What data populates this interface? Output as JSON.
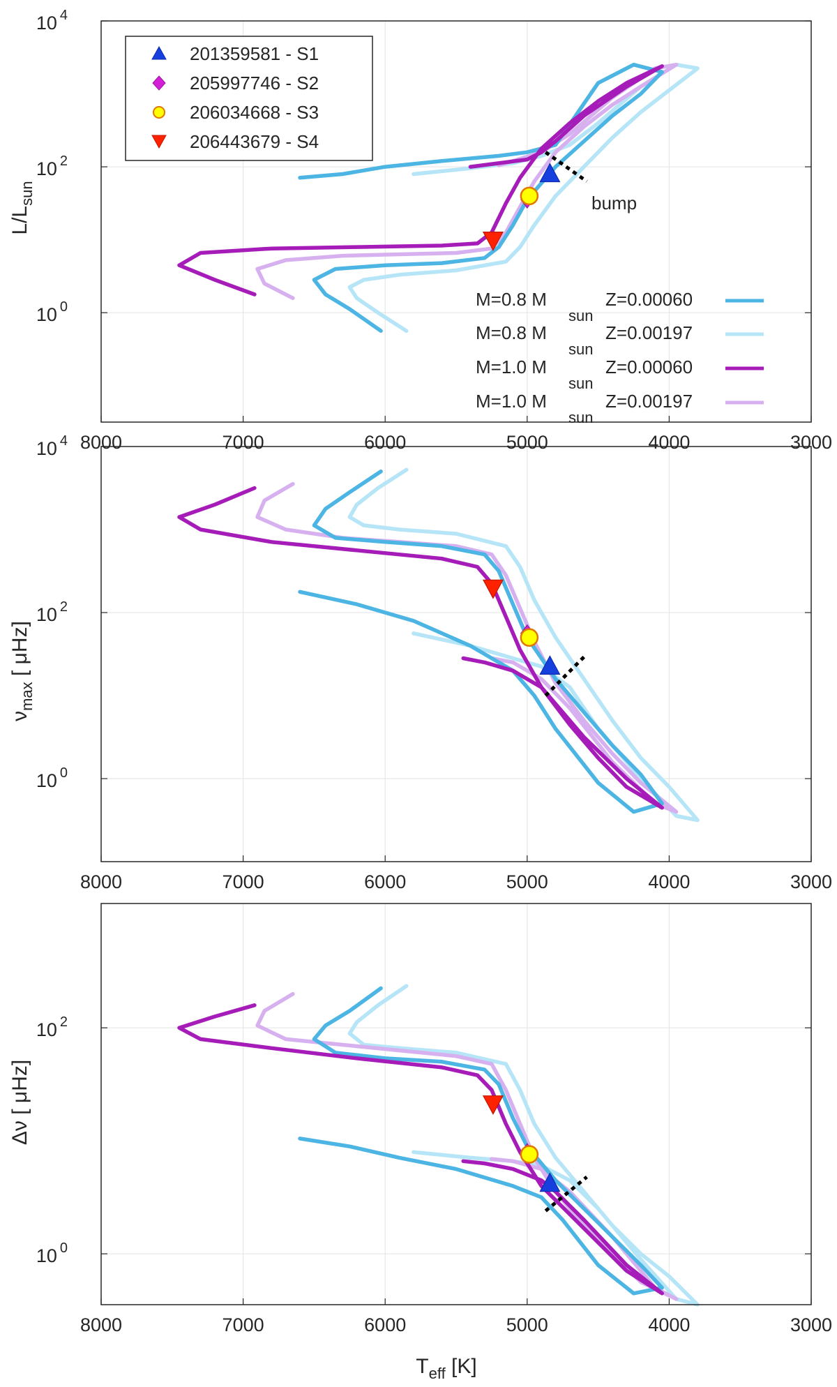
{
  "figure": {
    "x_axis": {
      "label_main": "T",
      "label_sub": "eff",
      "label_unit": " [K]",
      "reversed": true,
      "xlim": [
        3000,
        8000
      ],
      "ticks": [
        "8000",
        "7000",
        "6000",
        "5000",
        "4000",
        "3000"
      ],
      "tick_values": [
        8000,
        7000,
        6000,
        5000,
        4000,
        3000
      ]
    },
    "colors": {
      "M0.8_Z0.00060": "#4cb5e3",
      "M0.8_Z0.00197": "#b5e5f7",
      "M1.0_Z0.00060": "#a61cb8",
      "M1.0_Z0.00197": "#d7b1ef",
      "S1": "#1640dd",
      "S2": "#d31fd6",
      "S3": "#ffff00",
      "S4": "#ff2200"
    },
    "legend": {
      "stars": [
        {
          "key": "S1",
          "label": "201359581 - S1",
          "symbol": "triangle-up"
        },
        {
          "key": "S2",
          "label": "205997746 - S2",
          "symbol": "diamond"
        },
        {
          "key": "S3",
          "label": "206034668 - S3",
          "symbol": "circle"
        },
        {
          "key": "S4",
          "label": "206443679 - S4",
          "symbol": "triangle-down"
        }
      ],
      "tracks": [
        {
          "key": "M0.8_Z0.00060",
          "m": "M=0.8 M",
          "sun": "sun",
          "z": "Z=0.00060"
        },
        {
          "key": "M0.8_Z0.00197",
          "m": "M=0.8 M",
          "sun": "sun",
          "z": "Z=0.00197"
        },
        {
          "key": "M1.0_Z0.00060",
          "m": "M=1.0 M",
          "sun": "sun",
          "z": "Z=0.00060"
        },
        {
          "key": "M1.0_Z0.00197",
          "m": "M=1.0 M",
          "sun": "sun",
          "z": "Z=0.00197"
        }
      ]
    },
    "bump_label": "bump"
  },
  "chart_data": [
    {
      "type": "line",
      "panel": "luminosity",
      "ylabel_main": "L/L",
      "ylabel_sub": "sun",
      "yscale": "log",
      "ylim_log": [
        -1.5,
        4
      ],
      "yticks": [
        {
          "base": "10",
          "exp": "0",
          "log": 0
        },
        {
          "base": "10",
          "exp": "2",
          "log": 2
        },
        {
          "base": "10",
          "exp": "4",
          "log": 4
        }
      ],
      "series": [
        {
          "name": "M=0.8 Msun Z=0.00060",
          "key": "M0.8_Z0.00060",
          "x": [
            6030,
            6250,
            6420,
            6500,
            6350,
            6000,
            5600,
            5300,
            5200,
            5100,
            5000,
            4800,
            4600,
            4400,
            4200,
            4050,
            4250,
            4500,
            4800,
            5000,
            5200,
            5600,
            6000,
            6300,
            6600
          ],
          "y": [
            -0.25,
            0.05,
            0.25,
            0.45,
            0.6,
            0.65,
            0.68,
            0.75,
            0.9,
            1.2,
            1.55,
            2.0,
            2.35,
            2.7,
            3.0,
            3.3,
            3.4,
            3.15,
            2.3,
            2.2,
            2.15,
            2.08,
            2.0,
            1.9,
            1.85
          ]
        },
        {
          "name": "M=0.8 Msun Z=0.00197",
          "key": "M0.8_Z0.00197",
          "x": [
            5850,
            6050,
            6200,
            6250,
            6150,
            5900,
            5500,
            5150,
            5050,
            4950,
            4800,
            4600,
            4400,
            4200,
            4000,
            3800,
            3950,
            4200,
            4500,
            4700,
            4900,
            5100,
            5400,
            5800
          ],
          "y": [
            -0.25,
            0.0,
            0.2,
            0.35,
            0.45,
            0.52,
            0.58,
            0.7,
            0.9,
            1.2,
            1.6,
            2.0,
            2.4,
            2.75,
            3.05,
            3.35,
            3.4,
            3.1,
            2.6,
            2.3,
            2.15,
            2.05,
            1.98,
            1.9
          ]
        },
        {
          "name": "M=1.0 Msun Z=0.00060",
          "key": "M1.0_Z0.00060",
          "x": [
            6920,
            7200,
            7450,
            7300,
            6800,
            6200,
            5600,
            5350,
            5250,
            5150,
            5050,
            4900,
            4700,
            4500,
            4300,
            4050,
            4300,
            4600,
            4800,
            4900,
            5000,
            5200,
            5400
          ],
          "y": [
            0.25,
            0.45,
            0.65,
            0.82,
            0.88,
            0.9,
            0.92,
            0.95,
            1.1,
            1.5,
            1.85,
            2.25,
            2.6,
            2.9,
            3.15,
            3.38,
            3.1,
            2.7,
            2.35,
            2.2,
            2.1,
            2.05,
            2.0
          ]
        },
        {
          "name": "M=1.0 Msun Z=0.00197",
          "key": "M1.0_Z0.00197",
          "x": [
            6650,
            6850,
            6900,
            6700,
            6300,
            5900,
            5500,
            5250,
            5150,
            5050,
            4950,
            4800,
            4600,
            4400,
            4200,
            3950,
            4100,
            4400,
            4700,
            4900,
            5100,
            5200
          ],
          "y": [
            0.2,
            0.4,
            0.6,
            0.72,
            0.78,
            0.8,
            0.82,
            0.88,
            1.1,
            1.45,
            1.8,
            2.2,
            2.55,
            2.85,
            3.1,
            3.4,
            3.35,
            2.95,
            2.45,
            2.2,
            2.08,
            2.02
          ]
        }
      ],
      "stars": [
        {
          "key": "S1",
          "teff": 4840,
          "y": 1.9
        },
        {
          "key": "S2",
          "teff": 5000,
          "y": 1.55
        },
        {
          "key": "S3",
          "teff": 4985,
          "y": 1.6
        },
        {
          "key": "S4",
          "teff": 5240,
          "y": 1.0
        }
      ],
      "bump_line": {
        "x": [
          4870,
          4580
        ],
        "y": [
          2.2,
          1.8
        ]
      }
    },
    {
      "type": "line",
      "panel": "numax",
      "ylabel_main": "ν",
      "ylabel_sub": "max",
      "ylabel_unit": " [ μHz]",
      "yscale": "log",
      "ylim_log": [
        -1,
        4
      ],
      "yticks": [
        {
          "base": "10",
          "exp": "0",
          "log": 0
        },
        {
          "base": "10",
          "exp": "2",
          "log": 2
        },
        {
          "base": "10",
          "exp": "4",
          "log": 4
        }
      ],
      "series": [
        {
          "name": "M=0.8 Msun Z=0.00060",
          "key": "M0.8_Z0.00060",
          "x": [
            6030,
            6250,
            6420,
            6500,
            6350,
            6000,
            5600,
            5300,
            5200,
            5100,
            5000,
            4800,
            4600,
            4400,
            4200,
            4050,
            4250,
            4500,
            4800,
            4950,
            5100,
            5400,
            5800,
            6200,
            6600
          ],
          "y": [
            3.7,
            3.45,
            3.25,
            3.05,
            2.9,
            2.85,
            2.8,
            2.7,
            2.5,
            2.1,
            1.7,
            1.2,
            0.8,
            0.4,
            0.05,
            -0.3,
            -0.4,
            -0.05,
            0.6,
            1.0,
            1.3,
            1.6,
            1.9,
            2.1,
            2.25
          ]
        },
        {
          "name": "M=0.8 Msun Z=0.00197",
          "key": "M0.8_Z0.00197",
          "x": [
            5850,
            6050,
            6200,
            6250,
            6150,
            5900,
            5500,
            5150,
            5050,
            4950,
            4800,
            4600,
            4400,
            4200,
            4000,
            3800,
            3950,
            4200,
            4500,
            4700,
            4900,
            5100,
            5400,
            5800
          ],
          "y": [
            3.72,
            3.5,
            3.3,
            3.15,
            3.05,
            3.0,
            2.95,
            2.8,
            2.55,
            2.15,
            1.7,
            1.2,
            0.7,
            0.25,
            -0.1,
            -0.5,
            -0.45,
            0.0,
            0.6,
            1.1,
            1.35,
            1.45,
            1.6,
            1.75
          ]
        },
        {
          "name": "M=1.0 Msun Z=0.00060",
          "key": "M1.0_Z0.00060",
          "x": [
            6920,
            7200,
            7450,
            7300,
            6800,
            6200,
            5600,
            5350,
            5250,
            5150,
            5050,
            4900,
            4700,
            4500,
            4300,
            4050,
            4300,
            4600,
            4800,
            4900,
            5100,
            5300,
            5450
          ],
          "y": [
            3.5,
            3.3,
            3.15,
            3.0,
            2.85,
            2.75,
            2.65,
            2.55,
            2.35,
            1.95,
            1.55,
            1.1,
            0.65,
            0.25,
            -0.1,
            -0.35,
            0.0,
            0.5,
            0.9,
            1.1,
            1.3,
            1.4,
            1.45
          ]
        },
        {
          "name": "M=1.0 Msun Z=0.00197",
          "key": "M1.0_Z0.00197",
          "x": [
            6650,
            6850,
            6900,
            6700,
            6300,
            5900,
            5500,
            5250,
            5150,
            5050,
            4950,
            4800,
            4600,
            4400,
            4200,
            3950,
            4100,
            4400,
            4700,
            4900,
            5100,
            5250
          ],
          "y": [
            3.55,
            3.35,
            3.15,
            3.0,
            2.9,
            2.85,
            2.8,
            2.7,
            2.45,
            2.05,
            1.65,
            1.15,
            0.7,
            0.3,
            -0.05,
            -0.4,
            -0.3,
            0.2,
            0.85,
            1.2,
            1.4,
            1.45
          ]
        }
      ],
      "stars": [
        {
          "key": "S1",
          "teff": 4840,
          "y": 1.35
        },
        {
          "key": "S2",
          "teff": 5000,
          "y": 1.75
        },
        {
          "key": "S3",
          "teff": 4985,
          "y": 1.7
        },
        {
          "key": "S4",
          "teff": 5240,
          "y": 2.3
        }
      ],
      "bump_line": {
        "x": [
          4870,
          4580
        ],
        "y": [
          1.0,
          1.5
        ]
      }
    },
    {
      "type": "line",
      "panel": "delta_nu",
      "ylabel_main": "Δν",
      "ylabel_unit": " [ μHz]",
      "yscale": "log",
      "ylim_log": [
        -0.45,
        3.1
      ],
      "yticks": [
        {
          "base": "10",
          "exp": "0",
          "log": 0
        },
        {
          "base": "10",
          "exp": "2",
          "log": 2
        }
      ],
      "series": [
        {
          "name": "M=0.8 Msun Z=0.00060",
          "key": "M0.8_Z0.00060",
          "x": [
            6030,
            6250,
            6420,
            6500,
            6350,
            6000,
            5600,
            5300,
            5200,
            5100,
            5000,
            4800,
            4600,
            4400,
            4200,
            4050,
            4250,
            4500,
            4750,
            4900,
            5100,
            5500,
            5900,
            6250,
            6600
          ],
          "y": [
            2.35,
            2.15,
            2.02,
            1.9,
            1.78,
            1.73,
            1.7,
            1.63,
            1.5,
            1.2,
            0.95,
            0.65,
            0.4,
            0.15,
            -0.1,
            -0.3,
            -0.35,
            -0.1,
            0.3,
            0.5,
            0.6,
            0.75,
            0.85,
            0.95,
            1.02
          ]
        },
        {
          "name": "M=0.8 Msun Z=0.00197",
          "key": "M0.8_Z0.00197",
          "x": [
            5850,
            6050,
            6200,
            6250,
            6150,
            5900,
            5500,
            5150,
            5050,
            4950,
            4800,
            4600,
            4400,
            4200,
            4000,
            3800,
            3950,
            4200,
            4500,
            4700,
            4900,
            5100,
            5400,
            5800
          ],
          "y": [
            2.37,
            2.2,
            2.05,
            1.95,
            1.85,
            1.82,
            1.78,
            1.68,
            1.45,
            1.15,
            0.85,
            0.55,
            0.25,
            0.0,
            -0.2,
            -0.45,
            -0.4,
            -0.05,
            0.4,
            0.65,
            0.78,
            0.82,
            0.85,
            0.9
          ]
        },
        {
          "name": "M=1.0 Msun Z=0.00060",
          "key": "M1.0_Z0.00060",
          "x": [
            6920,
            7200,
            7450,
            7300,
            6800,
            6200,
            5600,
            5350,
            5250,
            5150,
            5050,
            4900,
            4700,
            4500,
            4300,
            4050,
            4300,
            4600,
            4800,
            4900,
            5100,
            5300,
            5450
          ],
          "y": [
            2.2,
            2.1,
            2.0,
            1.9,
            1.82,
            1.73,
            1.65,
            1.58,
            1.45,
            1.15,
            0.9,
            0.6,
            0.35,
            0.1,
            -0.15,
            -0.35,
            -0.1,
            0.3,
            0.55,
            0.65,
            0.75,
            0.8,
            0.82
          ]
        },
        {
          "name": "M=1.0 Msun Z=0.00197",
          "key": "M1.0_Z0.00197",
          "x": [
            6650,
            6850,
            6900,
            6700,
            6300,
            5900,
            5500,
            5250,
            5150,
            5050,
            4950,
            4800,
            4600,
            4400,
            4200,
            3950,
            4100,
            4400,
            4700,
            4900,
            5100,
            5250
          ],
          "y": [
            2.3,
            2.15,
            2.02,
            1.9,
            1.85,
            1.8,
            1.75,
            1.68,
            1.45,
            1.15,
            0.85,
            0.55,
            0.25,
            0.0,
            -0.25,
            -0.4,
            -0.3,
            0.15,
            0.55,
            0.75,
            0.82,
            0.84
          ]
        }
      ],
      "stars": [
        {
          "key": "S1",
          "teff": 4840,
          "y": 0.62
        },
        {
          "key": "S2",
          "teff": 5000,
          "y": 0.9
        },
        {
          "key": "S3",
          "teff": 4985,
          "y": 0.88
        },
        {
          "key": "S4",
          "teff": 5240,
          "y": 1.33
        }
      ],
      "bump_line": {
        "x": [
          4870,
          4580
        ],
        "y": [
          0.38,
          0.68
        ]
      }
    }
  ]
}
